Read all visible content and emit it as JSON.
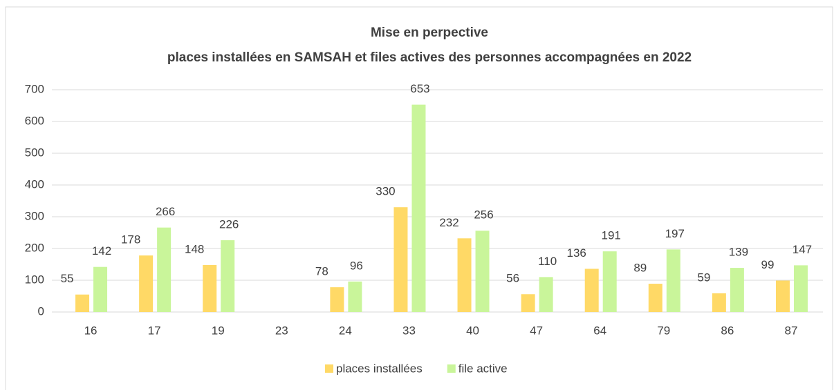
{
  "chart_data": {
    "type": "bar",
    "title": "Mise en perpective",
    "subtitle": "places installées en SAMSAH et files actives des personnes accompagnées en 2022",
    "categories": [
      "16",
      "17",
      "19",
      "23",
      "24",
      "33",
      "40",
      "47",
      "64",
      "79",
      "86",
      "87"
    ],
    "series": [
      {
        "name": "places installées",
        "color": "#ffd966",
        "values": [
          55,
          178,
          148,
          null,
          78,
          330,
          232,
          56,
          136,
          89,
          59,
          99
        ]
      },
      {
        "name": "file active",
        "color": "#c9f59a",
        "values": [
          142,
          266,
          226,
          null,
          96,
          653,
          256,
          110,
          191,
          197,
          139,
          147
        ]
      }
    ],
    "ylim": [
      0,
      700
    ],
    "yticks": [
      0,
      100,
      200,
      300,
      400,
      500,
      600,
      700
    ],
    "grid": true,
    "legend": "bottom"
  }
}
